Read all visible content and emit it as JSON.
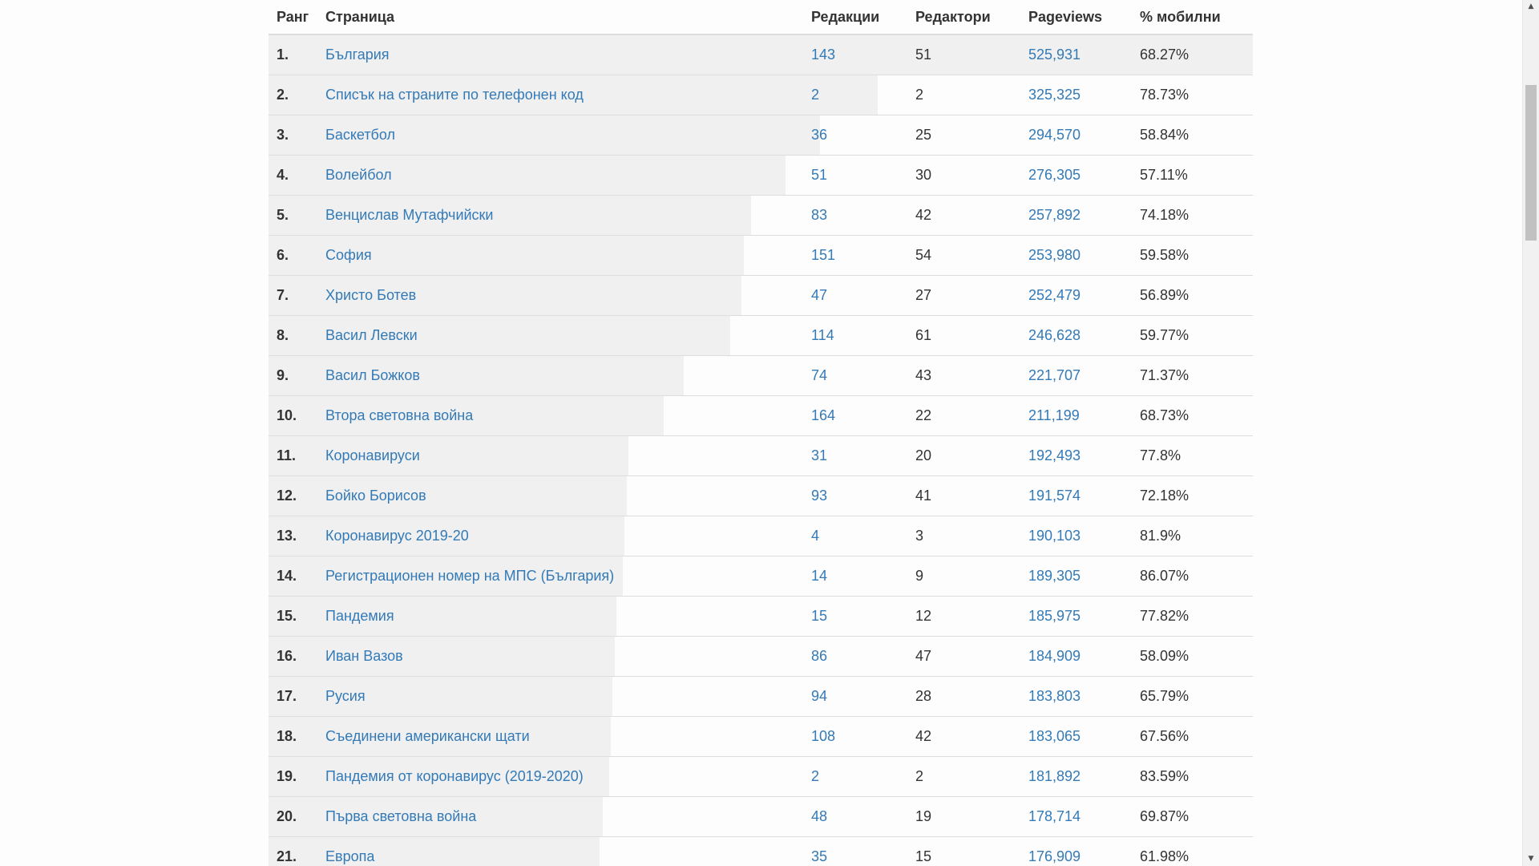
{
  "table": {
    "headers": {
      "rank": "Ранг",
      "page": "Страница",
      "edits": "Редакции",
      "editors": "Редактори",
      "pageviews": "Pageviews",
      "mobile": "% мобилни"
    },
    "rows": [
      {
        "rank": "1.",
        "page": "България",
        "edits": "143",
        "editors": "51",
        "pageviews": "525,931",
        "mobile": "68.27%",
        "views_value": 525931
      },
      {
        "rank": "2.",
        "page": "Списък на страните по телефонен код",
        "edits": "2",
        "editors": "2",
        "pageviews": "325,325",
        "mobile": "78.73%",
        "views_value": 325325
      },
      {
        "rank": "3.",
        "page": "Баскетбол",
        "edits": "36",
        "editors": "25",
        "pageviews": "294,570",
        "mobile": "58.84%",
        "views_value": 294570
      },
      {
        "rank": "4.",
        "page": "Волейбол",
        "edits": "51",
        "editors": "30",
        "pageviews": "276,305",
        "mobile": "57.11%",
        "views_value": 276305
      },
      {
        "rank": "5.",
        "page": "Венцислав Мутафчийски",
        "edits": "83",
        "editors": "42",
        "pageviews": "257,892",
        "mobile": "74.18%",
        "views_value": 257892
      },
      {
        "rank": "6.",
        "page": "София",
        "edits": "151",
        "editors": "54",
        "pageviews": "253,980",
        "mobile": "59.58%",
        "views_value": 253980
      },
      {
        "rank": "7.",
        "page": "Христо Ботев",
        "edits": "47",
        "editors": "27",
        "pageviews": "252,479",
        "mobile": "56.89%",
        "views_value": 252479
      },
      {
        "rank": "8.",
        "page": "Васил Левски",
        "edits": "114",
        "editors": "61",
        "pageviews": "246,628",
        "mobile": "59.77%",
        "views_value": 246628
      },
      {
        "rank": "9.",
        "page": "Васил Божков",
        "edits": "74",
        "editors": "43",
        "pageviews": "221,707",
        "mobile": "71.37%",
        "views_value": 221707
      },
      {
        "rank": "10.",
        "page": "Втора световна война",
        "edits": "164",
        "editors": "22",
        "pageviews": "211,199",
        "mobile": "68.73%",
        "views_value": 211199
      },
      {
        "rank": "11.",
        "page": "Коронавируси",
        "edits": "31",
        "editors": "20",
        "pageviews": "192,493",
        "mobile": "77.8%",
        "views_value": 192493
      },
      {
        "rank": "12.",
        "page": "Бойко Борисов",
        "edits": "93",
        "editors": "41",
        "pageviews": "191,574",
        "mobile": "72.18%",
        "views_value": 191574
      },
      {
        "rank": "13.",
        "page": "Коронавирус 2019-20",
        "edits": "4",
        "editors": "3",
        "pageviews": "190,103",
        "mobile": "81.9%",
        "views_value": 190103
      },
      {
        "rank": "14.",
        "page": "Регистрационен номер на МПС (България)",
        "edits": "14",
        "editors": "9",
        "pageviews": "189,305",
        "mobile": "86.07%",
        "views_value": 189305
      },
      {
        "rank": "15.",
        "page": "Пандемия",
        "edits": "15",
        "editors": "12",
        "pageviews": "185,975",
        "mobile": "77.82%",
        "views_value": 185975
      },
      {
        "rank": "16.",
        "page": "Иван Вазов",
        "edits": "86",
        "editors": "47",
        "pageviews": "184,909",
        "mobile": "58.09%",
        "views_value": 184909
      },
      {
        "rank": "17.",
        "page": "Русия",
        "edits": "94",
        "editors": "28",
        "pageviews": "183,803",
        "mobile": "65.79%",
        "views_value": 183803
      },
      {
        "rank": "18.",
        "page": "Съединени американски щати",
        "edits": "108",
        "editors": "42",
        "pageviews": "183,065",
        "mobile": "67.56%",
        "views_value": 183065
      },
      {
        "rank": "19.",
        "page": "Пандемия от коронавирус (2019-2020)",
        "edits": "2",
        "editors": "2",
        "pageviews": "181,892",
        "mobile": "83.59%",
        "views_value": 181892
      },
      {
        "rank": "20.",
        "page": "Първа световна война",
        "edits": "48",
        "editors": "19",
        "pageviews": "178,714",
        "mobile": "69.87%",
        "views_value": 178714
      },
      {
        "rank": "21.",
        "page": "Европа",
        "edits": "35",
        "editors": "15",
        "pageviews": "176,909",
        "mobile": "61.98%",
        "views_value": 176909
      }
    ]
  },
  "colors": {
    "link": "#337ab7",
    "bar": "#f0f0f0",
    "border": "#dddddd"
  },
  "scrollbar": {
    "up_icon": "scroll-up-arrow-icon",
    "down_icon": "scroll-down-arrow-icon",
    "position_fraction": 0.1
  }
}
